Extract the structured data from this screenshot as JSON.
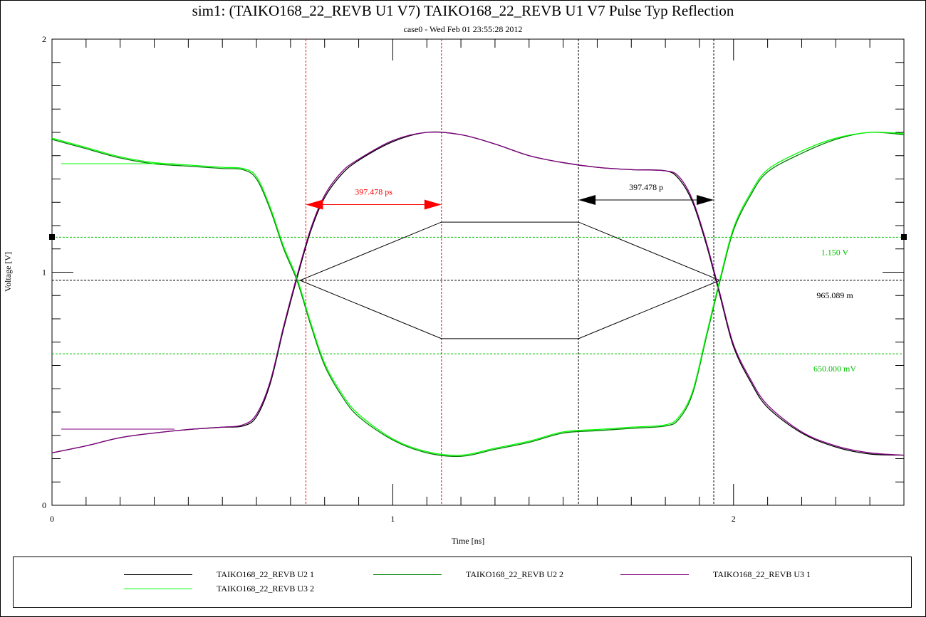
{
  "title": "sim1: (TAIKO168_22_REVB U1 V7) TAIKO168_22_REVB U1 V7 Pulse Typ Reflection",
  "subtitle": "case0 - Wed Feb 01 23:55:28 2012",
  "chart_data": {
    "type": "line",
    "xlabel": "Time [ns]",
    "ylabel": "Voltage [V]",
    "xlim": [
      0,
      2.5
    ],
    "ylim": [
      0,
      2
    ],
    "xticks": [
      0,
      1,
      2
    ],
    "yticks": [
      0,
      1,
      2
    ],
    "xminor_step": 0.1,
    "yminor_step": 0.1,
    "grid": false,
    "legend_position": "bottom",
    "series": [
      {
        "name": "TAIKO168_22_REVB U2 1",
        "color": "#000000",
        "x": [
          0,
          0.1,
          0.2,
          0.3,
          0.4,
          0.5,
          0.56,
          0.6,
          0.64,
          0.68,
          0.72,
          0.76,
          0.8,
          0.85,
          0.9,
          1.0,
          1.1,
          1.2,
          1.3,
          1.4,
          1.5,
          1.6,
          1.7,
          1.8,
          1.84,
          1.88,
          1.92,
          1.96,
          2.0,
          2.05,
          2.1,
          2.2,
          2.3,
          2.4,
          2.5
        ],
        "y": [
          0.225,
          0.255,
          0.29,
          0.31,
          0.325,
          0.335,
          0.34,
          0.38,
          0.52,
          0.76,
          0.98,
          1.18,
          1.32,
          1.42,
          1.48,
          1.56,
          1.6,
          1.59,
          1.55,
          1.5,
          1.47,
          1.45,
          1.44,
          1.435,
          1.4,
          1.3,
          1.12,
          0.9,
          0.68,
          0.53,
          0.42,
          0.31,
          0.25,
          0.22,
          0.215
        ]
      },
      {
        "name": "TAIKO168_22_REVB U2 2",
        "color": "#008000",
        "x": [
          0,
          0.1,
          0.2,
          0.3,
          0.4,
          0.5,
          0.56,
          0.6,
          0.64,
          0.68,
          0.72,
          0.76,
          0.8,
          0.85,
          0.9,
          1.0,
          1.1,
          1.2,
          1.3,
          1.4,
          1.5,
          1.6,
          1.7,
          1.8,
          1.84,
          1.88,
          1.92,
          1.96,
          2.0,
          2.05,
          2.1,
          2.2,
          2.3,
          2.4,
          2.5
        ],
        "y": [
          1.57,
          1.53,
          1.49,
          1.465,
          1.455,
          1.445,
          1.44,
          1.4,
          1.27,
          1.1,
          0.96,
          0.77,
          0.6,
          0.47,
          0.38,
          0.28,
          0.225,
          0.21,
          0.24,
          0.27,
          0.31,
          0.32,
          0.33,
          0.34,
          0.37,
          0.48,
          0.72,
          0.96,
          1.18,
          1.33,
          1.43,
          1.51,
          1.57,
          1.6,
          1.59
        ]
      },
      {
        "name": "TAIKO168_22_REVB U3 1",
        "color": "#800080",
        "x": [
          0,
          0.1,
          0.2,
          0.3,
          0.4,
          0.5,
          0.56,
          0.6,
          0.64,
          0.68,
          0.72,
          0.76,
          0.8,
          0.85,
          0.9,
          1.0,
          1.1,
          1.2,
          1.3,
          1.4,
          1.5,
          1.6,
          1.7,
          1.8,
          1.84,
          1.88,
          1.92,
          1.96,
          2.0,
          2.05,
          2.1,
          2.2,
          2.3,
          2.4,
          2.5
        ],
        "y": [
          0.225,
          0.255,
          0.29,
          0.31,
          0.325,
          0.335,
          0.345,
          0.39,
          0.53,
          0.77,
          0.99,
          1.19,
          1.33,
          1.43,
          1.485,
          1.565,
          1.6,
          1.59,
          1.55,
          1.5,
          1.47,
          1.45,
          1.44,
          1.435,
          1.41,
          1.31,
          1.13,
          0.91,
          0.69,
          0.54,
          0.43,
          0.315,
          0.255,
          0.225,
          0.215
        ]
      },
      {
        "name": "TAIKO168_22_REVB U3 2",
        "color": "#00ff00",
        "x": [
          0,
          0.1,
          0.2,
          0.3,
          0.4,
          0.5,
          0.56,
          0.6,
          0.64,
          0.68,
          0.72,
          0.76,
          0.8,
          0.85,
          0.9,
          1.0,
          1.1,
          1.2,
          1.3,
          1.4,
          1.5,
          1.6,
          1.7,
          1.8,
          1.84,
          1.88,
          1.92,
          1.96,
          2.0,
          2.05,
          2.1,
          2.2,
          2.3,
          2.4,
          2.5
        ],
        "y": [
          1.575,
          1.535,
          1.495,
          1.47,
          1.46,
          1.45,
          1.445,
          1.41,
          1.28,
          1.11,
          0.97,
          0.78,
          0.61,
          0.48,
          0.39,
          0.285,
          0.23,
          0.215,
          0.245,
          0.275,
          0.315,
          0.325,
          0.335,
          0.345,
          0.38,
          0.49,
          0.73,
          0.97,
          1.19,
          1.34,
          1.44,
          1.52,
          1.575,
          1.6,
          1.595
        ]
      }
    ],
    "reference_lines": [
      {
        "value": 1.15,
        "label": "1.150 V",
        "color": "#00c000"
      },
      {
        "value": 0.965089,
        "label": "965.089 m",
        "color": "#000000"
      },
      {
        "value": 0.65,
        "label": "650.000 mV",
        "color": "#00c000"
      }
    ],
    "markers": [
      {
        "x": 0.745,
        "color": "#ff0000"
      },
      {
        "x": 1.143,
        "color": "#ff0000"
      },
      {
        "x": 1.545,
        "color": "#000000"
      },
      {
        "x": 1.942,
        "color": "#000000"
      }
    ],
    "measurements": [
      {
        "x1": 0.745,
        "x2": 1.143,
        "y": 1.29,
        "label": "397.478 ps",
        "color": "#ff0000"
      },
      {
        "x1": 1.545,
        "x2": 1.942,
        "y": 1.31,
        "label": "397.478 p",
        "color": "#000000"
      }
    ],
    "eye_mask": {
      "color": "#000000",
      "x": [
        0.728,
        1.143,
        1.545,
        1.96,
        1.545,
        1.143,
        0.728
      ],
      "y": [
        0.965,
        1.215,
        1.215,
        0.965,
        0.715,
        0.715,
        0.965
      ]
    }
  }
}
